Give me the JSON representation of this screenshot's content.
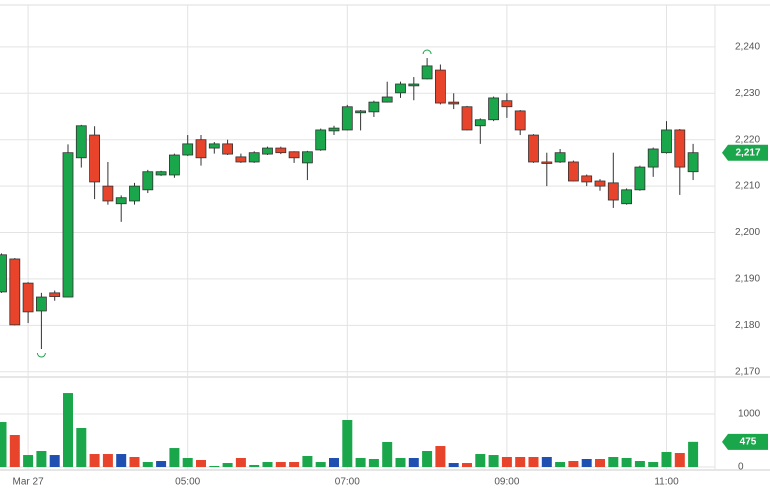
{
  "chart_data": {
    "type": "candlestick",
    "categories": [
      null,
      null,
      "Mar 27",
      null,
      null,
      null,
      null,
      null,
      null,
      null,
      null,
      null,
      null,
      null,
      "05:00",
      null,
      null,
      null,
      null,
      null,
      null,
      null,
      null,
      null,
      null,
      null,
      "07:00",
      null,
      null,
      null,
      null,
      null,
      null,
      null,
      null,
      null,
      null,
      null,
      "09:00",
      null,
      null,
      null,
      null,
      null,
      null,
      null,
      null,
      null,
      null,
      null,
      "11:00",
      null,
      null
    ],
    "open": [
      2187.2,
      2194.3,
      2189.1,
      2183.1,
      2187,
      2186.1,
      2216.1,
      2221,
      2210,
      2206.2,
      2206.8,
      2209.2,
      2212.4,
      2212.4,
      2216.7,
      2220,
      2218.2,
      2219.1,
      2216.3,
      2215.2,
      2216.9,
      2218.2,
      2217.4,
      2215,
      2217.8,
      2221.9,
      2222.1,
      2225.8,
      2226,
      2228.1,
      2230.1,
      2231.6,
      2233.1,
      2235,
      2228.1,
      2227.1,
      2223,
      2224.3,
      2228.4,
      2226.2,
      2221,
      2215.2,
      2215.2,
      2215.2,
      2212.2,
      2211.1,
      2210.7,
      2206.2,
      2209.2,
      2214.1,
      2217.2,
      2222.1,
      2213.1
    ],
    "high": [
      2195.5,
      2194.5,
      2189.3,
      2187,
      2187.5,
      2219,
      2223.2,
      2222.9,
      2215.2,
      2208,
      2210.7,
      2213.5,
      2213.3,
      2217,
      2221,
      2221,
      2219.5,
      2220,
      2217,
      2217.5,
      2218.5,
      2218.5,
      2217.5,
      2217.6,
      2222.4,
      2223,
      2227.5,
      2226.4,
      2228.4,
      2232.5,
      2232.5,
      2233.5,
      2237.6,
      2236.2,
      2230,
      2227.3,
      2224.6,
      2229.3,
      2230,
      2226.4,
      2221.2,
      2217.2,
      2218,
      2215.5,
      2212.5,
      2211.5,
      2217.2,
      2209.5,
      2214.4,
      2218.3,
      2224,
      2222.3,
      2219.1
    ],
    "low": [
      2187,
      2180,
      2180.5,
      2174.9,
      2185.3,
      2186,
      2214,
      2207.2,
      2206,
      2202.3,
      2206,
      2208.5,
      2212.2,
      2211.8,
      2216.5,
      2214.4,
      2217,
      2216.7,
      2215,
      2215,
      2216.7,
      2216.9,
      2215,
      2211.3,
      2217.6,
      2221,
      2222,
      2222,
      2224.9,
      2228,
      2229,
      2228.5,
      2233,
      2227.6,
      2226.6,
      2222,
      2219.1,
      2224,
      2224.7,
      2221,
      2215,
      2210,
      2215,
      2211,
      2210,
      2209,
      2205.3,
      2206,
      2209,
      2212,
      2217,
      2208.1,
      2211.3
    ],
    "close": [
      2195.2,
      2180.1,
      2182.9,
      2186.1,
      2186.2,
      2217.2,
      2223,
      2210.9,
      2206.8,
      2207.5,
      2210,
      2213.1,
      2213.1,
      2216.7,
      2219.1,
      2216.1,
      2219.1,
      2216.9,
      2215.2,
      2217.2,
      2218.2,
      2217.2,
      2216.1,
      2217.4,
      2222.1,
      2222.5,
      2227.1,
      2226.2,
      2228.1,
      2229.2,
      2232,
      2232,
      2235.9,
      2227.9,
      2227.7,
      2222.1,
      2224.3,
      2229,
      2227.1,
      2222.1,
      2215.2,
      2215,
      2217.2,
      2211.1,
      2210.9,
      2210,
      2207,
      2209.2,
      2214.1,
      2218,
      2222.1,
      2214.1,
      2217.2
    ],
    "up_color": "#1aa64a",
    "down_color": "#e8432b",
    "ylim": [
      2169.3,
      2250.1
    ],
    "yticks": [
      {
        "value": 2170,
        "label": "2,170"
      },
      {
        "value": 2180,
        "label": "2,180"
      },
      {
        "value": 2190,
        "label": "2,190"
      },
      {
        "value": 2200,
        "label": "2,200"
      },
      {
        "value": 2210,
        "label": "2,210"
      },
      {
        "value": 2220,
        "label": "2,220"
      },
      {
        "value": 2230,
        "label": "2,230"
      },
      {
        "value": 2240,
        "label": "2,240"
      }
    ],
    "grid": true,
    "last_price": {
      "value": 2217.2,
      "label": "2,217"
    },
    "volume": {
      "values": [
        849,
        604,
        226,
        302,
        226,
        1396,
        736,
        245,
        245,
        245,
        189,
        94,
        113,
        358,
        170,
        132,
        19,
        75,
        170,
        38,
        94,
        94,
        94,
        208,
        94,
        170,
        887,
        170,
        151,
        472,
        170,
        170,
        302,
        396,
        75,
        75,
        245,
        226,
        189,
        189,
        189,
        189,
        94,
        113,
        151,
        151,
        189,
        170,
        113,
        94,
        283,
        264,
        475
      ],
      "colors": [
        "#1aa64a",
        "#e8432b",
        "#1aa64a",
        "#1aa64a",
        "#1f4fb0",
        "#1aa64a",
        "#1aa64a",
        "#e8432b",
        "#e8432b",
        "#1f4fb0",
        "#e8432b",
        "#1aa64a",
        "#1f4fb0",
        "#1aa64a",
        "#1aa64a",
        "#e8432b",
        "#1aa64a",
        "#1aa64a",
        "#e8432b",
        "#1aa64a",
        "#1aa64a",
        "#e8432b",
        "#e8432b",
        "#1aa64a",
        "#1aa64a",
        "#1f4fb0",
        "#1aa64a",
        "#1aa64a",
        "#1aa64a",
        "#1aa64a",
        "#1aa64a",
        "#1f4fb0",
        "#1aa64a",
        "#e8432b",
        "#1f4fb0",
        "#e8432b",
        "#1aa64a",
        "#1aa64a",
        "#e8432b",
        "#e8432b",
        "#e8432b",
        "#1f4fb0",
        "#1aa64a",
        "#e8432b",
        "#1f4fb0",
        "#e8432b",
        "#1aa64a",
        "#1aa64a",
        "#1aa64a",
        "#1aa64a",
        "#1aa64a",
        "#e8432b",
        "#1aa64a"
      ],
      "ylim": [
        0,
        1680
      ],
      "yticks": [
        0,
        1000
      ],
      "last": {
        "value": 475,
        "label": "475"
      }
    }
  }
}
